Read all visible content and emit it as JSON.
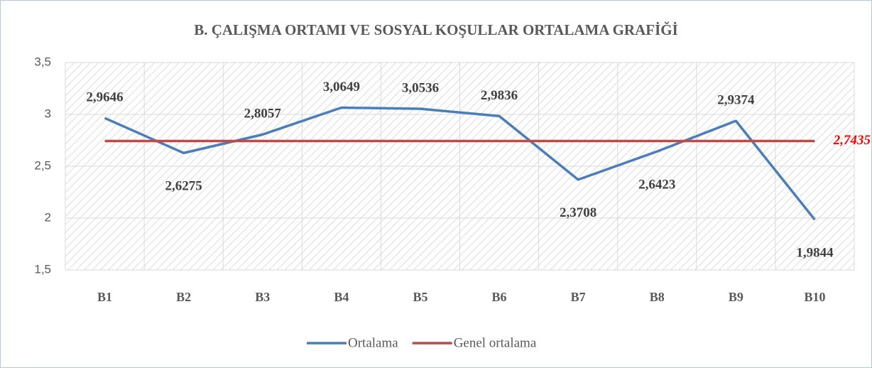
{
  "chart_data": {
    "type": "line",
    "title": "B. ÇALIŞMA ORTAMI VE SOSYAL KOŞULLAR ORTALAMA GRAFİĞİ",
    "categories": [
      "B1",
      "B2",
      "B3",
      "B4",
      "B5",
      "B6",
      "B7",
      "B8",
      "B9",
      "B10"
    ],
    "series": [
      {
        "name": "Ortalama",
        "color": "#4a7ebb",
        "values": [
          2.9646,
          2.6275,
          2.8057,
          3.0649,
          3.0536,
          2.9836,
          2.3708,
          2.6423,
          2.9374,
          1.9844
        ],
        "value_labels": [
          "2,9646",
          "2,6275",
          "2,8057",
          "3,0649",
          "3,0536",
          "2,9836",
          "2,3708",
          "2,6423",
          "2,9374",
          "1,9844"
        ]
      },
      {
        "name": "Genel ortalama",
        "color": "#be4b48",
        "values": [
          2.7435,
          2.7435,
          2.7435,
          2.7435,
          2.7435,
          2.7435,
          2.7435,
          2.7435,
          2.7435,
          2.7435
        ],
        "value_labels": [
          null,
          null,
          null,
          null,
          null,
          null,
          null,
          null,
          null,
          "2,7435"
        ]
      }
    ],
    "ylim": [
      1.5,
      3.5
    ],
    "yticks": [
      {
        "value": 1.5,
        "label": "1,5"
      },
      2,
      {
        "value": 2.5,
        "label": "2,5"
      },
      3,
      {
        "value": 3.5,
        "label": "3,5"
      }
    ],
    "grid": true,
    "legend": "bottom"
  }
}
